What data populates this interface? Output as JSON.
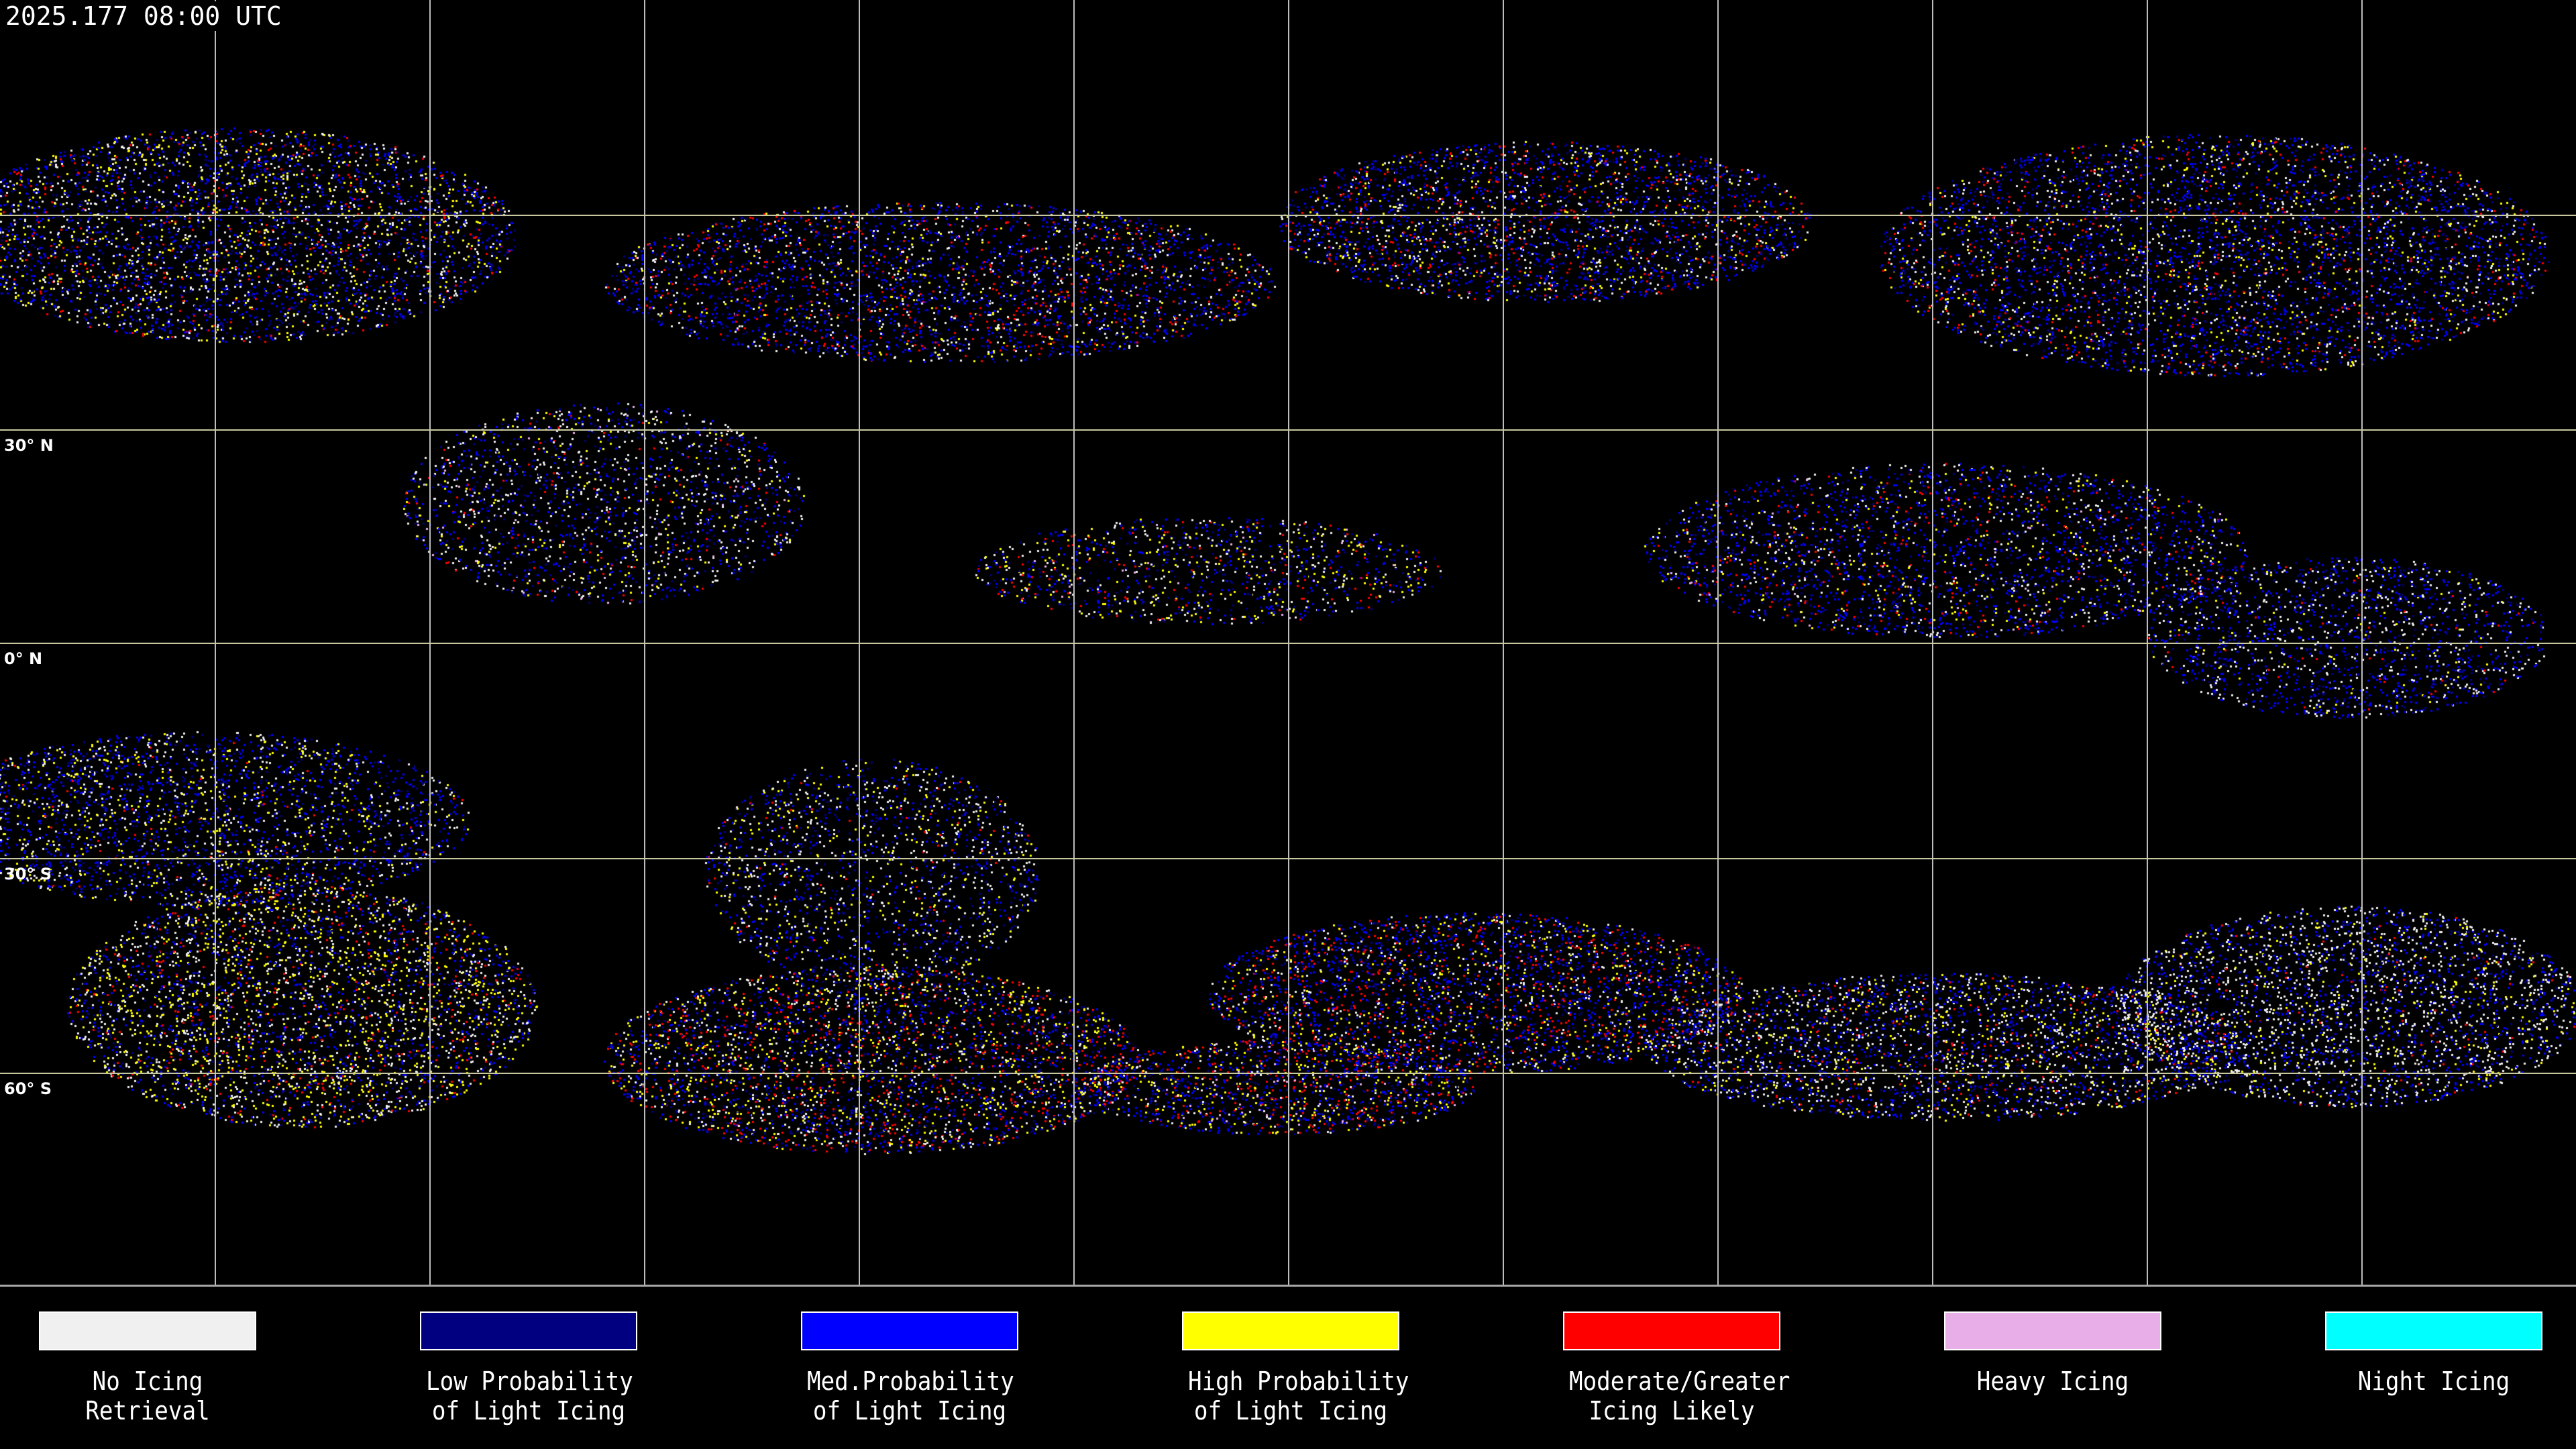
{
  "header": {
    "timestamp": "2025.177 08:00 UTC"
  },
  "map": {
    "projection": "equirectangular",
    "latitude_labels": [
      "30° N",
      "0° N",
      "30° S",
      "60° S"
    ],
    "graticule_spacing_degrees": 30
  },
  "legend": [
    {
      "label_line1": "No Icing",
      "label_line2": "Retrieval",
      "color": "#f0f0f0"
    },
    {
      "label_line1": "Low Probability",
      "label_line2": "of Light Icing",
      "color": "#000080"
    },
    {
      "label_line1": "Med.Probability",
      "label_line2": "of Light Icing",
      "color": "#0000ff"
    },
    {
      "label_line1": "High Probability",
      "label_line2": "of Light Icing",
      "color": "#ffff00"
    },
    {
      "label_line1": "Moderate/Greater",
      "label_line2": "Icing Likely",
      "color": "#ff0000"
    },
    {
      "label_line1": "Heavy Icing",
      "label_line2": "",
      "color": "#e8aee8"
    },
    {
      "label_line1": "Night Icing",
      "label_line2": "",
      "color": "#00ffff"
    }
  ]
}
